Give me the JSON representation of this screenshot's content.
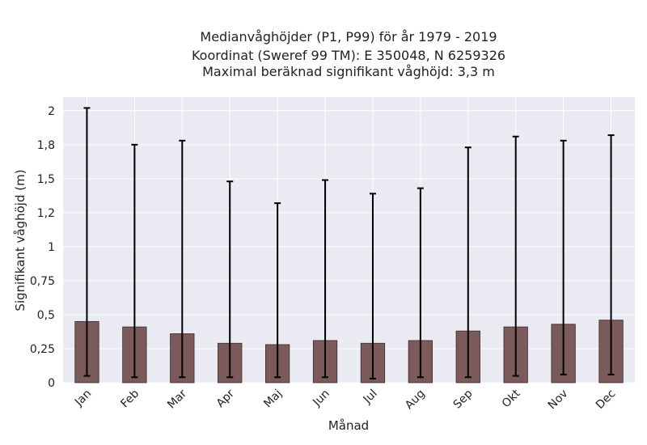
{
  "chart_data": {
    "type": "bar",
    "title_lines": [
      "Medianvåghöjder (P1, P99) för år 1979 - 2019",
      "Koordinat (Sweref 99 TM): E 350048, N 6259326",
      "Maximal beräknad signifikant våghöjd: 3,3 m"
    ],
    "xlabel": "Månad",
    "ylabel": "Signifikant våghöjd (m)",
    "categories": [
      "Jan",
      "Feb",
      "Mar",
      "Apr",
      "Maj",
      "Jun",
      "Jul",
      "Aug",
      "Sep",
      "Okt",
      "Nov",
      "Dec"
    ],
    "median": [
      0.45,
      0.41,
      0.36,
      0.29,
      0.28,
      0.31,
      0.29,
      0.31,
      0.38,
      0.41,
      0.43,
      0.46
    ],
    "p1": [
      0.05,
      0.04,
      0.04,
      0.04,
      0.04,
      0.04,
      0.03,
      0.04,
      0.04,
      0.05,
      0.06,
      0.06
    ],
    "p99": [
      2.02,
      1.75,
      1.78,
      1.48,
      1.32,
      1.49,
      1.39,
      1.43,
      1.73,
      1.81,
      1.78,
      1.82
    ],
    "ylim": [
      0,
      2.1
    ],
    "yticks": [
      0,
      0.25,
      0.5,
      0.75,
      1,
      1.25,
      1.5,
      1.75,
      2
    ],
    "ytick_labels": [
      "0",
      "0,25",
      "0,5",
      "0,75",
      "1",
      "1,2",
      "1,5",
      "1,8",
      "2"
    ],
    "grid": true,
    "bar_color": "#7a5a5a",
    "error_color": "#000000",
    "background_color": "#eaeaf2"
  }
}
